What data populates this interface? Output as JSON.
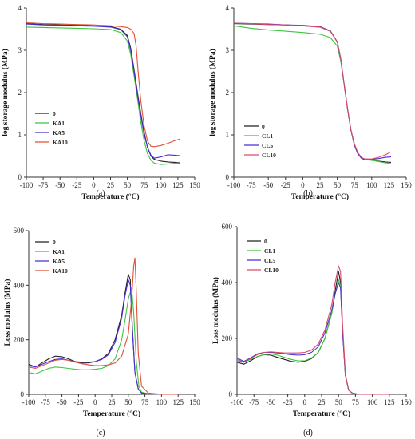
{
  "colors": {
    "0": "#222222",
    "KA1": "#3ec43e",
    "KA5": "#4b2ed6",
    "KA10": "#e0503a",
    "CL1": "#3ec43e",
    "CL5": "#4b2ed6",
    "CL10": "#d94a6a"
  },
  "chart_data": [
    {
      "panel": "(a)",
      "type": "line",
      "xlabel": "Temperature (°C)",
      "ylabel": "log storage modulus (MPa)",
      "xlim": [
        -100,
        150
      ],
      "ylim": [
        0,
        4
      ],
      "xticks": [
        "-100",
        "-75",
        "-50",
        "-25",
        "0",
        "25",
        "50",
        "75",
        "100",
        "125",
        "150"
      ],
      "yticks": [
        "0",
        "1",
        "2",
        "3",
        "4"
      ],
      "legend_position": "left-bottom",
      "series": [
        {
          "name": "0",
          "color_key": "0",
          "x": [
            -100,
            -75,
            -50,
            -25,
            0,
            25,
            40,
            50,
            55,
            60,
            65,
            70,
            75,
            80,
            85,
            90,
            100,
            110,
            120,
            128
          ],
          "y": [
            3.63,
            3.61,
            3.6,
            3.59,
            3.58,
            3.56,
            3.5,
            3.35,
            3.05,
            2.55,
            2.0,
            1.5,
            1.05,
            0.7,
            0.5,
            0.42,
            0.38,
            0.36,
            0.35,
            0.34
          ]
        },
        {
          "name": "KA1",
          "color_key": "KA1",
          "x": [
            -100,
            -75,
            -50,
            -25,
            0,
            25,
            40,
            50,
            55,
            60,
            65,
            70,
            75,
            80,
            85,
            90,
            100,
            110,
            120,
            128
          ],
          "y": [
            3.55,
            3.54,
            3.53,
            3.52,
            3.51,
            3.49,
            3.42,
            3.22,
            2.9,
            2.4,
            1.85,
            1.3,
            0.85,
            0.55,
            0.4,
            0.33,
            0.3,
            0.31,
            0.33,
            0.32
          ]
        },
        {
          "name": "KA5",
          "color_key": "KA5",
          "x": [
            -100,
            -75,
            -50,
            -25,
            0,
            25,
            40,
            50,
            55,
            60,
            65,
            70,
            75,
            80,
            85,
            90,
            100,
            110,
            120,
            128
          ],
          "y": [
            3.62,
            3.6,
            3.59,
            3.58,
            3.57,
            3.55,
            3.49,
            3.32,
            3.0,
            2.5,
            1.95,
            1.45,
            1.0,
            0.7,
            0.52,
            0.45,
            0.48,
            0.53,
            0.52,
            0.51
          ]
        },
        {
          "name": "KA10",
          "color_key": "KA10",
          "x": [
            -100,
            -75,
            -50,
            -25,
            0,
            25,
            40,
            50,
            55,
            60,
            63,
            66,
            70,
            75,
            80,
            85,
            90,
            100,
            110,
            120,
            128
          ],
          "y": [
            3.65,
            3.63,
            3.62,
            3.61,
            3.6,
            3.58,
            3.56,
            3.54,
            3.5,
            3.4,
            3.1,
            2.5,
            1.8,
            1.2,
            0.85,
            0.73,
            0.72,
            0.75,
            0.8,
            0.86,
            0.9
          ]
        }
      ]
    },
    {
      "panel": "(b)",
      "type": "line",
      "xlabel": "Temperature (°C)",
      "ylabel": "log storage modulus (MPa)",
      "xlim": [
        -100,
        150
      ],
      "ylim": [
        0,
        4
      ],
      "xticks": [
        "-100",
        "-75",
        "-50",
        "-25",
        "0",
        "25",
        "50",
        "75",
        "100",
        "125",
        "150"
      ],
      "yticks": [
        "0",
        "1",
        "2",
        "3",
        "4"
      ],
      "legend_position": "left-bottom",
      "series": [
        {
          "name": "0",
          "color_key": "0",
          "x": [
            -100,
            -75,
            -50,
            -25,
            0,
            25,
            40,
            50,
            55,
            60,
            65,
            70,
            75,
            80,
            85,
            90,
            100,
            110,
            120,
            128
          ],
          "y": [
            3.63,
            3.62,
            3.61,
            3.6,
            3.58,
            3.55,
            3.45,
            3.2,
            2.8,
            2.2,
            1.6,
            1.1,
            0.75,
            0.55,
            0.45,
            0.42,
            0.4,
            0.38,
            0.36,
            0.35
          ]
        },
        {
          "name": "CL1",
          "color_key": "CL1",
          "x": [
            -100,
            -75,
            -50,
            -25,
            0,
            25,
            40,
            50,
            55,
            60,
            65,
            70,
            75,
            80,
            85,
            90,
            100,
            110,
            120,
            128
          ],
          "y": [
            3.58,
            3.52,
            3.48,
            3.45,
            3.42,
            3.38,
            3.3,
            3.1,
            2.75,
            2.2,
            1.6,
            1.1,
            0.75,
            0.55,
            0.45,
            0.42,
            0.4,
            0.37,
            0.34,
            0.32
          ]
        },
        {
          "name": "CL5",
          "color_key": "CL5",
          "x": [
            -100,
            -75,
            -50,
            -25,
            0,
            25,
            40,
            50,
            55,
            60,
            65,
            70,
            75,
            80,
            85,
            90,
            100,
            110,
            120,
            128
          ],
          "y": [
            3.64,
            3.63,
            3.62,
            3.6,
            3.59,
            3.56,
            3.46,
            3.2,
            2.8,
            2.2,
            1.6,
            1.1,
            0.75,
            0.55,
            0.45,
            0.41,
            0.42,
            0.44,
            0.47,
            0.48
          ]
        },
        {
          "name": "CL10",
          "color_key": "CL10",
          "x": [
            -100,
            -75,
            -50,
            -25,
            0,
            25,
            40,
            50,
            55,
            60,
            65,
            70,
            75,
            80,
            85,
            90,
            100,
            110,
            120,
            128
          ],
          "y": [
            3.64,
            3.63,
            3.61,
            3.6,
            3.58,
            3.55,
            3.45,
            3.2,
            2.8,
            2.2,
            1.6,
            1.1,
            0.78,
            0.58,
            0.47,
            0.43,
            0.43,
            0.47,
            0.53,
            0.6
          ]
        }
      ]
    },
    {
      "panel": "(c)",
      "type": "line",
      "xlabel": "Temperature (°C)",
      "ylabel": "Loss modulus (MPa)",
      "xlim": [
        -100,
        150
      ],
      "ylim": [
        0,
        600
      ],
      "xticks": [
        "-100",
        "-75",
        "-50",
        "-25",
        "0",
        "25",
        "50",
        "75",
        "100",
        "125",
        "150"
      ],
      "yticks": [
        "0",
        "200",
        "400",
        "600"
      ],
      "legend_position": "top-left",
      "series": [
        {
          "name": "0",
          "color_key": "0",
          "x": [
            -100,
            -90,
            -80,
            -70,
            -60,
            -50,
            -40,
            -30,
            -20,
            -10,
            0,
            10,
            20,
            30,
            40,
            45,
            50,
            53,
            56,
            60,
            65,
            70,
            80,
            100,
            125
          ],
          "y": [
            110,
            100,
            115,
            130,
            140,
            138,
            130,
            120,
            115,
            115,
            120,
            130,
            150,
            200,
            290,
            370,
            440,
            420,
            250,
            80,
            20,
            5,
            2,
            0,
            0
          ]
        },
        {
          "name": "KA1",
          "color_key": "KA1",
          "x": [
            -100,
            -90,
            -80,
            -70,
            -60,
            -50,
            -40,
            -30,
            -20,
            -10,
            0,
            10,
            20,
            30,
            40,
            45,
            50,
            55,
            58,
            62,
            66,
            70,
            80,
            100,
            125
          ],
          "y": [
            80,
            75,
            85,
            95,
            100,
            98,
            95,
            92,
            90,
            90,
            92,
            95,
            105,
            130,
            200,
            270,
            350,
            390,
            300,
            120,
            30,
            8,
            2,
            0,
            0
          ]
        },
        {
          "name": "KA5",
          "color_key": "KA5",
          "x": [
            -100,
            -90,
            -80,
            -70,
            -60,
            -50,
            -40,
            -30,
            -20,
            -10,
            0,
            10,
            20,
            30,
            40,
            45,
            50,
            53,
            56,
            60,
            65,
            70,
            80,
            100,
            125
          ],
          "y": [
            105,
            100,
            110,
            120,
            128,
            130,
            125,
            120,
            118,
            118,
            120,
            128,
            145,
            190,
            280,
            360,
            420,
            400,
            240,
            80,
            20,
            5,
            2,
            0,
            0
          ]
        },
        {
          "name": "KA10",
          "color_key": "KA10",
          "x": [
            -100,
            -90,
            -80,
            -70,
            -60,
            -50,
            -40,
            -30,
            -20,
            -10,
            0,
            10,
            20,
            30,
            40,
            50,
            55,
            58,
            60,
            62,
            65,
            70,
            80,
            100,
            125
          ],
          "y": [
            100,
            95,
            105,
            115,
            125,
            128,
            125,
            118,
            112,
            108,
            105,
            105,
            108,
            115,
            140,
            220,
            350,
            470,
            500,
            380,
            150,
            30,
            5,
            0,
            0
          ]
        }
      ]
    },
    {
      "panel": "(d)",
      "type": "line",
      "xlabel": "Temperature (°C)",
      "ylabel": "Loss modulus (MPa)",
      "xlim": [
        -100,
        150
      ],
      "ylim": [
        0,
        600
      ],
      "xticks": [
        "-100",
        "-75",
        "-50",
        "-25",
        "0",
        "25",
        "50",
        "75",
        "100",
        "125",
        "150"
      ],
      "yticks": [
        "0",
        "200",
        "400",
        "600"
      ],
      "legend_position": "top-left",
      "series": [
        {
          "name": "0",
          "color_key": "0",
          "x": [
            -100,
            -90,
            -80,
            -70,
            -60,
            -50,
            -40,
            -30,
            -20,
            -10,
            0,
            10,
            20,
            30,
            40,
            45,
            50,
            53,
            56,
            60,
            65,
            70,
            80,
            100,
            125
          ],
          "y": [
            115,
            108,
            120,
            135,
            142,
            140,
            132,
            125,
            118,
            115,
            118,
            128,
            150,
            200,
            290,
            370,
            440,
            400,
            230,
            70,
            15,
            5,
            0,
            0,
            0
          ]
        },
        {
          "name": "CL1",
          "color_key": "CL1",
          "x": [
            -100,
            -90,
            -80,
            -70,
            -60,
            -50,
            -40,
            -30,
            -20,
            -10,
            0,
            10,
            20,
            30,
            40,
            45,
            50,
            53,
            56,
            60,
            65,
            70,
            80,
            100,
            125
          ],
          "y": [
            120,
            115,
            125,
            135,
            142,
            145,
            140,
            132,
            125,
            120,
            120,
            130,
            150,
            200,
            290,
            360,
            410,
            390,
            230,
            70,
            15,
            5,
            0,
            0,
            0
          ]
        },
        {
          "name": "CL5",
          "color_key": "CL5",
          "x": [
            -100,
            -90,
            -80,
            -70,
            -60,
            -50,
            -40,
            -30,
            -20,
            -10,
            0,
            10,
            20,
            30,
            40,
            45,
            50,
            53,
            56,
            60,
            65,
            70,
            80,
            100,
            125
          ],
          "y": [
            130,
            118,
            130,
            145,
            150,
            150,
            148,
            145,
            142,
            140,
            142,
            150,
            170,
            220,
            300,
            360,
            400,
            380,
            220,
            70,
            15,
            5,
            0,
            0,
            0
          ]
        },
        {
          "name": "CL10",
          "color_key": "CL10",
          "x": [
            -100,
            -90,
            -80,
            -70,
            -60,
            -50,
            -40,
            -30,
            -20,
            -10,
            0,
            10,
            20,
            30,
            40,
            45,
            50,
            53,
            56,
            60,
            65,
            70,
            80,
            100,
            125
          ],
          "y": [
            125,
            115,
            128,
            142,
            150,
            152,
            150,
            148,
            148,
            148,
            150,
            158,
            180,
            230,
            320,
            400,
            460,
            440,
            250,
            75,
            15,
            5,
            0,
            0,
            0
          ]
        }
      ]
    }
  ]
}
